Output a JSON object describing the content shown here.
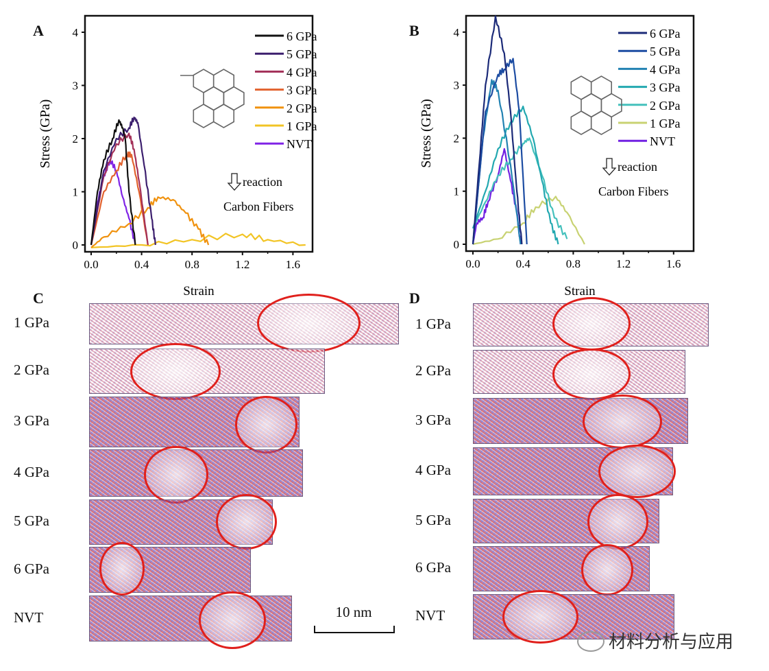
{
  "chart_data": [
    {
      "panel": "A",
      "type": "line",
      "xlabel": "Strain",
      "ylabel": "Stress (GPa)",
      "xlim": [
        -0.03,
        1.75
      ],
      "ylim": [
        -0.1,
        4.3
      ],
      "xticks": [
        "0.0",
        "0.4",
        "0.8",
        "1.2",
        "1.6"
      ],
      "yticks": [
        "0",
        "1",
        "2",
        "3",
        "4"
      ],
      "legend": "top-right",
      "annotations": {
        "reaction": "reaction",
        "product": "Carbon Fibers"
      },
      "series": [
        {
          "name": "6 GPa",
          "color": "#111111",
          "x": [
            0,
            0.05,
            0.1,
            0.17,
            0.22,
            0.25,
            0.27,
            0.3,
            0.35
          ],
          "y": [
            0,
            1.0,
            1.6,
            2.0,
            2.35,
            2.2,
            2.0,
            1.0,
            0
          ]
        },
        {
          "name": "5 GPa",
          "color": "#3c1f6e",
          "x": [
            0,
            0.1,
            0.2,
            0.3,
            0.34,
            0.37,
            0.42,
            0.48,
            0.51
          ],
          "y": [
            0,
            1.4,
            2.0,
            2.2,
            2.4,
            2.3,
            1.5,
            0.5,
            0
          ]
        },
        {
          "name": "4 GPa",
          "color": "#a33058",
          "x": [
            0,
            0.1,
            0.2,
            0.3,
            0.34,
            0.38,
            0.45
          ],
          "y": [
            0,
            1.3,
            1.9,
            2.1,
            1.8,
            1.2,
            0
          ]
        },
        {
          "name": "3 GPa",
          "color": "#e2622e",
          "x": [
            0,
            0.1,
            0.2,
            0.28,
            0.32,
            0.38,
            0.45
          ],
          "y": [
            0,
            1.0,
            1.4,
            1.7,
            1.7,
            1.0,
            0
          ]
        },
        {
          "name": "2 GPa",
          "color": "#f0920f",
          "x": [
            0,
            0.1,
            0.3,
            0.45,
            0.53,
            0.65,
            0.75,
            0.85,
            0.93
          ],
          "y": [
            -0.05,
            0.15,
            0.4,
            0.7,
            0.9,
            0.85,
            0.6,
            0.3,
            0
          ]
        },
        {
          "name": "1 GPa",
          "color": "#f2c424",
          "x": [
            0,
            0.4,
            0.8,
            1.2,
            1.4,
            1.7
          ],
          "y": [
            -0.05,
            0,
            0.1,
            0.2,
            0.1,
            0
          ]
        },
        {
          "name": "NVT",
          "color": "#8024e6",
          "x": [
            0,
            0.05,
            0.1,
            0.15,
            0.2,
            0.25,
            0.3,
            0.35
          ],
          "y": [
            0,
            0.8,
            1.3,
            1.6,
            1.4,
            0.9,
            0.5,
            0
          ]
        }
      ]
    },
    {
      "panel": "B",
      "type": "line",
      "xlabel": "Strain",
      "ylabel": "Stress (GPa)",
      "xlim": [
        -0.03,
        1.75
      ],
      "ylim": [
        -0.1,
        4.3
      ],
      "xticks": [
        "0.0",
        "0.4",
        "0.8",
        "1.2",
        "1.6"
      ],
      "yticks": [
        "0",
        "1",
        "2",
        "3",
        "4"
      ],
      "legend": "top-right",
      "annotations": {
        "reaction": "reaction",
        "product": "Carbon Fibers"
      },
      "series": [
        {
          "name": "6 GPa",
          "color": "#1b2a78",
          "x": [
            0,
            0.05,
            0.1,
            0.18,
            0.25,
            0.3,
            0.35,
            0.39
          ],
          "y": [
            0,
            1.5,
            3.0,
            4.3,
            3.6,
            2.5,
            1.0,
            0
          ]
        },
        {
          "name": "5 GPa",
          "color": "#1c4ca2",
          "x": [
            0,
            0.1,
            0.2,
            0.25,
            0.32,
            0.37,
            0.43
          ],
          "y": [
            0,
            2.5,
            3.2,
            3.3,
            3.5,
            2.5,
            0
          ]
        },
        {
          "name": "4 GPa",
          "color": "#2282b2",
          "x": [
            0,
            0.08,
            0.15,
            0.2,
            0.3,
            0.38
          ],
          "y": [
            0,
            2.0,
            3.1,
            2.9,
            1.5,
            0
          ]
        },
        {
          "name": "3 GPa",
          "color": "#22a8b0",
          "x": [
            0,
            0.1,
            0.2,
            0.3,
            0.4,
            0.48,
            0.55,
            0.62,
            0.68
          ],
          "y": [
            0.3,
            1.0,
            1.8,
            2.3,
            2.6,
            2.0,
            1.2,
            0.4,
            0
          ]
        },
        {
          "name": "2 GPa",
          "color": "#44c0bc",
          "x": [
            0,
            0.1,
            0.2,
            0.3,
            0.4,
            0.45,
            0.55,
            0.65,
            0.75
          ],
          "y": [
            0.3,
            0.8,
            1.3,
            1.6,
            1.9,
            2.0,
            1.3,
            0.5,
            0.1
          ]
        },
        {
          "name": "1 GPa",
          "color": "#c8d272",
          "x": [
            0,
            0.2,
            0.4,
            0.5,
            0.66,
            0.75,
            0.89
          ],
          "y": [
            0,
            0.1,
            0.4,
            0.7,
            0.9,
            0.6,
            0
          ]
        },
        {
          "name": "NVT",
          "color": "#7020e2",
          "x": [
            0,
            0.03,
            0.08,
            0.12,
            0.2,
            0.25,
            0.3,
            0.35,
            0.38
          ],
          "y": [
            0,
            0.4,
            0.5,
            0.8,
            1.3,
            1.8,
            1.2,
            0.6,
            0
          ]
        }
      ]
    }
  ],
  "panel_c": {
    "letter": "C",
    "rows": [
      "1 GPa",
      "2 GPa",
      "3 GPa",
      "4 GPa",
      "5 GPa",
      "6 GPa",
      "NVT"
    ]
  },
  "panel_d": {
    "letter": "D",
    "rows": [
      "1 GPa",
      "2 GPa",
      "3 GPa",
      "4 GPa",
      "5 GPa",
      "6 GPa",
      "NVT"
    ]
  },
  "scale_bar": "10 nm",
  "watermark": "材料分析与应用"
}
